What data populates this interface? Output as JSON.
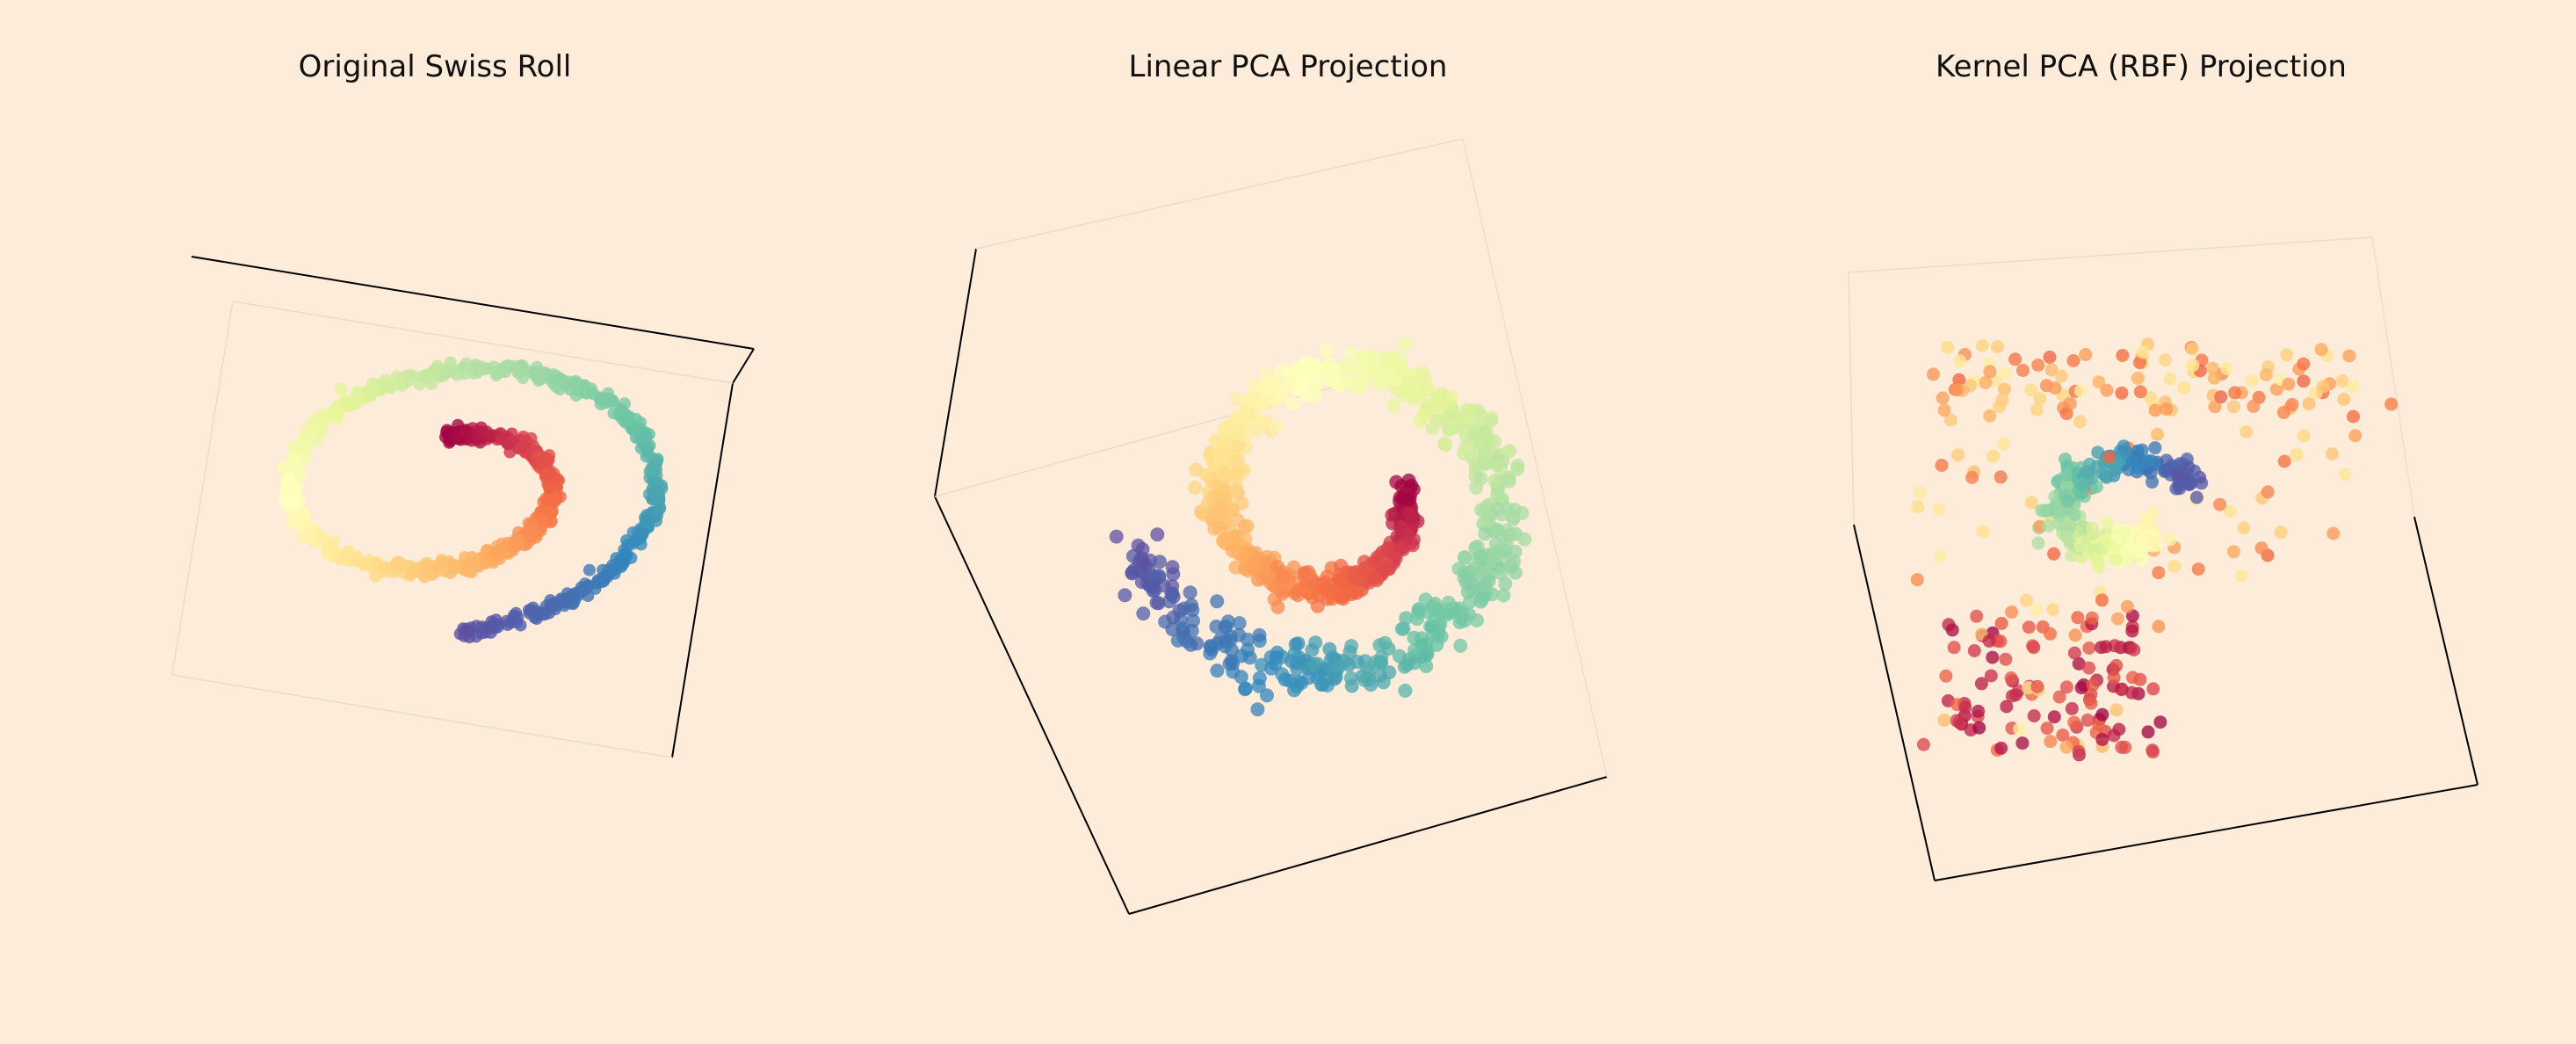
{
  "figure": {
    "background": "#fcecd9"
  },
  "chart_data": [
    {
      "type": "scatter",
      "title": "Original Swiss Roll",
      "projection": "3d",
      "colormap": "Spectral",
      "point_count": 1000,
      "series": [
        {
          "shape": "swiss-roll-spiral",
          "t_range": [
            4.7,
            14.1
          ]
        }
      ],
      "grid": false
    },
    {
      "type": "scatter",
      "title": "Linear PCA Projection",
      "projection": "3d",
      "colormap": "Spectral",
      "point_count": 1000,
      "series": [
        {
          "shape": "rotated-spiral-spread",
          "t_range": [
            4.7,
            14.1
          ]
        }
      ],
      "grid": false
    },
    {
      "type": "scatter",
      "title": "Kernel PCA (RBF) Projection",
      "projection": "3d",
      "colormap": "Spectral",
      "point_count": 600,
      "series": [
        {
          "shape": "folded-cloud",
          "t_range": [
            4.7,
            14.1
          ]
        }
      ],
      "grid": false
    }
  ]
}
